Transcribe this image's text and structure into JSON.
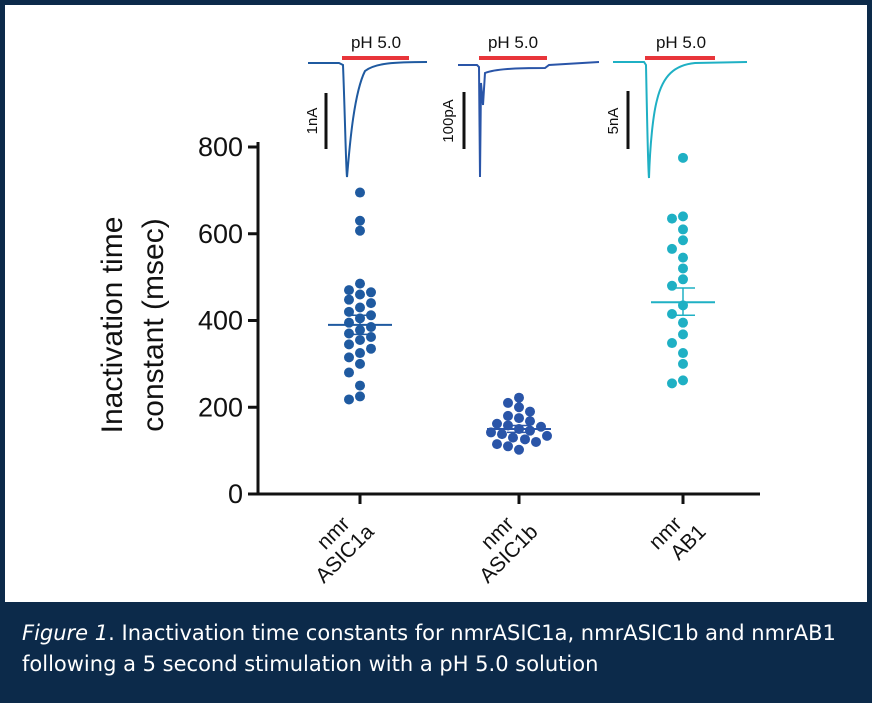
{
  "caption": {
    "figure_label": "Figure 1",
    "text": ". Inactivation time constants for nmrASIC1a, nmrASIC1b and nmrAB1 following a 5 second stimulation with a pH 5.0 solution"
  },
  "colors": {
    "frame": "#0c2a4a",
    "nmrASIC1a": "#1f5aa0",
    "nmrASIC1b": "#2a55a8",
    "nmrAB1": "#1fb0c4",
    "ph_bar": "#e8353a",
    "axis": "#111111"
  },
  "chart_data": {
    "type": "scatter",
    "title": "",
    "ylabel_line1": "Inactivation time",
    "ylabel_line2": "constant (msec)",
    "ylim": [
      0,
      800
    ],
    "yticks": [
      "0",
      "200",
      "400",
      "600",
      "800"
    ],
    "grid": false,
    "categories": [
      {
        "line1": "nmr",
        "line2": "ASIC1a"
      },
      {
        "line1": "nmr",
        "line2": "ASIC1b"
      },
      {
        "line1": "nmr",
        "line2": "AB1"
      }
    ],
    "series": [
      {
        "name": "nmrASIC1a",
        "mean": 390,
        "sem_low": 368,
        "sem_high": 412,
        "values": [
          695,
          630,
          607,
          485,
          470,
          465,
          460,
          448,
          440,
          430,
          420,
          412,
          405,
          395,
          385,
          378,
          370,
          362,
          355,
          345,
          335,
          325,
          315,
          300,
          280,
          250,
          225,
          218
        ]
      },
      {
        "name": "nmrASIC1b",
        "mean": 150,
        "sem_low": 142,
        "sem_high": 158,
        "values": [
          222,
          210,
          200,
          190,
          180,
          175,
          168,
          162,
          158,
          155,
          150,
          146,
          142,
          138,
          134,
          130,
          126,
          120,
          115,
          110,
          102
        ]
      },
      {
        "name": "nmrAB1",
        "mean": 442,
        "sem_low": 412,
        "sem_high": 475,
        "values": [
          775,
          640,
          635,
          610,
          585,
          565,
          545,
          520,
          495,
          480,
          435,
          415,
          395,
          368,
          348,
          325,
          300,
          262,
          255
        ]
      }
    ],
    "traces": [
      {
        "stimulus": "pH 5.0",
        "scale": "1nA"
      },
      {
        "stimulus": "pH 5.0",
        "scale": "100pA"
      },
      {
        "stimulus": "pH 5.0",
        "scale": "5nA"
      }
    ]
  }
}
